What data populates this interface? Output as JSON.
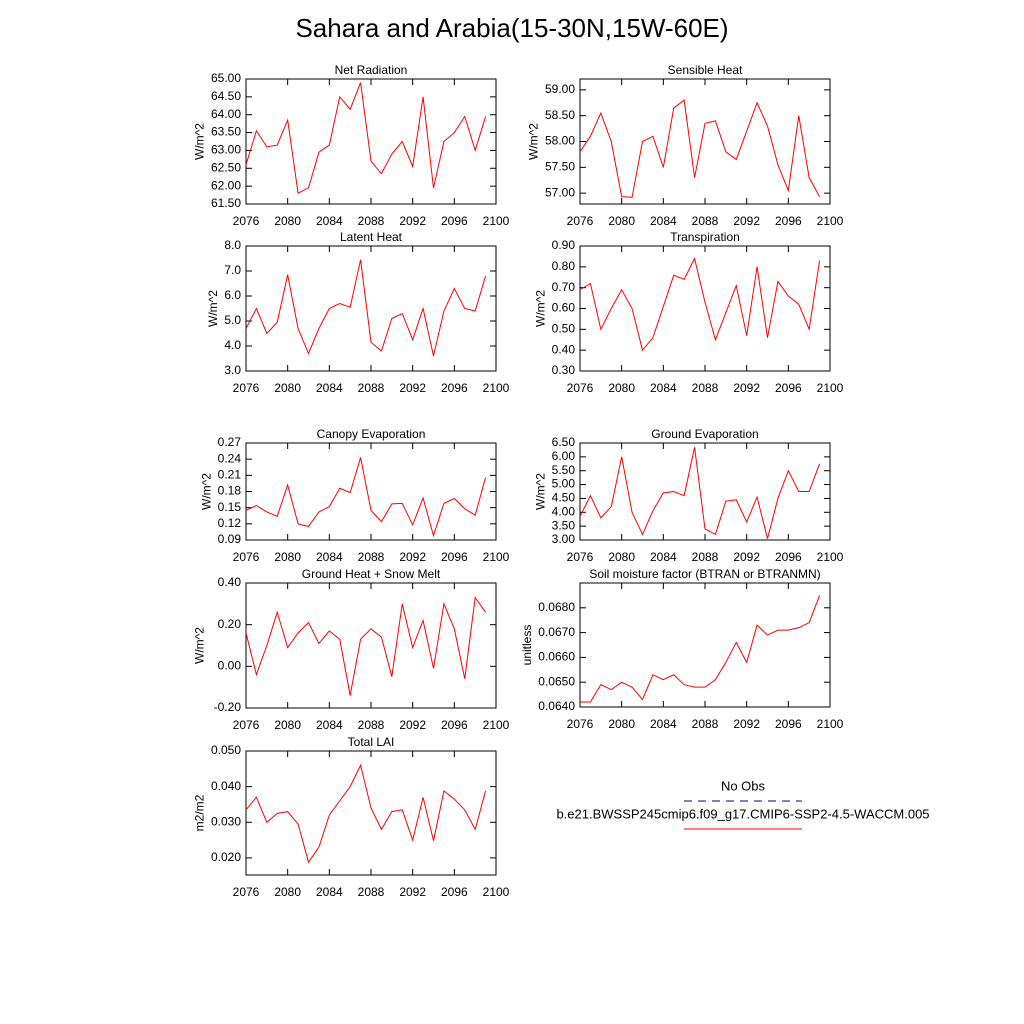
{
  "title": "Sahara and Arabia(15-30N,15W-60E)",
  "legend": [
    {
      "name": "No Obs",
      "color": "#000080",
      "dashed": true
    },
    {
      "name": "b.e21.BWSSP245cmip6.f09_g17.CMIP6-SSP2-4.5-WACCM.005",
      "color": "#ff0000",
      "dashed": false
    }
  ],
  "chart_data": [
    {
      "type": "line",
      "title": "Net Radiation",
      "ylabel": "W/m^2",
      "color": "#ff0000",
      "x": [
        2076,
        2077,
        2078,
        2079,
        2080,
        2081,
        2082,
        2083,
        2084,
        2085,
        2086,
        2087,
        2088,
        2089,
        2090,
        2091,
        2092,
        2093,
        2094,
        2095,
        2096,
        2097,
        2098,
        2099
      ],
      "values": [
        62.6,
        63.55,
        63.1,
        63.15,
        63.85,
        61.8,
        61.95,
        62.95,
        63.15,
        64.5,
        64.15,
        64.9,
        62.7,
        62.35,
        62.9,
        63.25,
        62.55,
        64.5,
        61.95,
        63.25,
        63.5,
        63.95,
        63.0,
        63.95
      ],
      "xlim": [
        2076,
        2100
      ],
      "xticks": [
        2076,
        2080,
        2084,
        2088,
        2092,
        2096,
        2100
      ],
      "ylim": [
        61.5,
        65.0
      ],
      "yticks": [
        {
          "value": 61.5,
          "label": "61.50"
        },
        {
          "value": 62,
          "label": "62.00"
        },
        {
          "value": 62.5,
          "label": "62.50"
        },
        {
          "value": 63,
          "label": "63.00"
        },
        {
          "value": 63.5,
          "label": "63.50"
        },
        {
          "value": 64,
          "label": "64.00"
        },
        {
          "value": 64.5,
          "label": "64.50"
        },
        {
          "value": 65,
          "label": "65.00"
        }
      ]
    },
    {
      "type": "line",
      "title": "Sensible Heat",
      "ylabel": "W/m^2",
      "color": "#ff0000",
      "x": [
        2076,
        2077,
        2078,
        2079,
        2080,
        2081,
        2082,
        2083,
        2084,
        2085,
        2086,
        2087,
        2088,
        2089,
        2090,
        2091,
        2092,
        2093,
        2094,
        2095,
        2096,
        2097,
        2098,
        2099
      ],
      "values": [
        57.8,
        58.1,
        58.55,
        58.0,
        56.93,
        56.92,
        58.0,
        58.1,
        57.5,
        58.65,
        58.8,
        57.3,
        58.35,
        58.4,
        57.8,
        57.65,
        58.2,
        58.75,
        58.3,
        57.55,
        57.05,
        58.5,
        57.3,
        56.93
      ],
      "xlim": [
        2076,
        2100
      ],
      "xticks": [
        2076,
        2080,
        2084,
        2088,
        2092,
        2096,
        2100
      ],
      "ylim": [
        56.79,
        59.21
      ],
      "yticks": [
        {
          "value": 57,
          "label": "57.00"
        },
        {
          "value": 57.5,
          "label": "57.50"
        },
        {
          "value": 58,
          "label": "58.00"
        },
        {
          "value": 58.5,
          "label": "58.50"
        },
        {
          "value": 59,
          "label": "59.00"
        }
      ]
    },
    {
      "type": "line",
      "title": "Latent Heat",
      "ylabel": "W/m^2",
      "color": "#ff0000",
      "x": [
        2076,
        2077,
        2078,
        2079,
        2080,
        2081,
        2082,
        2083,
        2084,
        2085,
        2086,
        2087,
        2088,
        2089,
        2090,
        2091,
        2092,
        2093,
        2094,
        2095,
        2096,
        2097,
        2098,
        2099
      ],
      "values": [
        4.7,
        5.5,
        4.5,
        4.95,
        6.85,
        4.7,
        3.7,
        4.7,
        5.5,
        5.7,
        5.55,
        7.45,
        4.15,
        3.8,
        5.1,
        5.3,
        4.25,
        5.5,
        3.6,
        5.4,
        6.3,
        5.5,
        5.4,
        6.8
      ],
      "xlim": [
        2076,
        2100
      ],
      "xticks": [
        2076,
        2080,
        2084,
        2088,
        2092,
        2096,
        2100
      ],
      "ylim": [
        3,
        8
      ],
      "yticks": [
        {
          "value": 3,
          "label": "3.0"
        },
        {
          "value": 4,
          "label": "4.0"
        },
        {
          "value": 5,
          "label": "5.0"
        },
        {
          "value": 6,
          "label": "6.0"
        },
        {
          "value": 7,
          "label": "7.0"
        },
        {
          "value": 8,
          "label": "8.0"
        }
      ]
    },
    {
      "type": "line",
      "title": "Transpiration",
      "ylabel": "W/m^2",
      "color": "#ff0000",
      "x": [
        2076,
        2077,
        2078,
        2079,
        2080,
        2081,
        2082,
        2083,
        2084,
        2085,
        2086,
        2087,
        2088,
        2089,
        2090,
        2091,
        2092,
        2093,
        2094,
        2095,
        2096,
        2097,
        2098,
        2099
      ],
      "values": [
        0.69,
        0.72,
        0.5,
        0.6,
        0.69,
        0.6,
        0.4,
        0.46,
        0.61,
        0.76,
        0.74,
        0.84,
        0.63,
        0.45,
        0.58,
        0.71,
        0.47,
        0.8,
        0.46,
        0.73,
        0.66,
        0.62,
        0.5,
        0.83
      ],
      "xlim": [
        2076,
        2100
      ],
      "xticks": [
        2076,
        2080,
        2084,
        2088,
        2092,
        2096,
        2100
      ],
      "ylim": [
        0.3,
        0.9
      ],
      "yticks": [
        {
          "value": 0.3,
          "label": "0.30"
        },
        {
          "value": 0.4,
          "label": "0.40"
        },
        {
          "value": 0.5,
          "label": "0.50"
        },
        {
          "value": 0.6,
          "label": "0.60"
        },
        {
          "value": 0.7,
          "label": "0.70"
        },
        {
          "value": 0.8,
          "label": "0.80"
        },
        {
          "value": 0.9,
          "label": "0.90"
        }
      ]
    },
    {
      "type": "line",
      "title": "Canopy Evaporation",
      "ylabel": "W/m^2",
      "color": "#ff0000",
      "x": [
        2076,
        2077,
        2078,
        2079,
        2080,
        2081,
        2082,
        2083,
        2084,
        2085,
        2086,
        2087,
        2088,
        2089,
        2090,
        2091,
        2092,
        2093,
        2094,
        2095,
        2096,
        2097,
        2098,
        2099
      ],
      "values": [
        0.145,
        0.154,
        0.142,
        0.134,
        0.192,
        0.12,
        0.115,
        0.142,
        0.152,
        0.186,
        0.178,
        0.243,
        0.145,
        0.124,
        0.157,
        0.158,
        0.118,
        0.168,
        0.098,
        0.158,
        0.167,
        0.148,
        0.136,
        0.206
      ],
      "xlim": [
        2076,
        2100
      ],
      "xticks": [
        2076,
        2080,
        2084,
        2088,
        2092,
        2096,
        2100
      ],
      "ylim": [
        0.09,
        0.27
      ],
      "yticks": [
        0.09,
        0.12,
        0.15,
        0.18,
        0.21,
        0.24,
        0.27
      ]
    },
    {
      "type": "line",
      "title": "Ground Evaporation",
      "ylabel": "W/m^2",
      "color": "#ff0000",
      "x": [
        2076,
        2077,
        2078,
        2079,
        2080,
        2081,
        2082,
        2083,
        2084,
        2085,
        2086,
        2087,
        2088,
        2089,
        2090,
        2091,
        2092,
        2093,
        2094,
        2095,
        2096,
        2097,
        2098,
        2099
      ],
      "values": [
        3.85,
        4.6,
        3.8,
        4.2,
        6.0,
        4.0,
        3.2,
        4.05,
        4.7,
        4.75,
        4.6,
        6.35,
        3.4,
        3.2,
        4.4,
        4.45,
        3.65,
        4.55,
        3.05,
        4.5,
        5.5,
        4.75,
        4.75,
        5.75
      ],
      "xlim": [
        2076,
        2100
      ],
      "xticks": [
        2076,
        2080,
        2084,
        2088,
        2092,
        2096,
        2100
      ],
      "ylim": [
        3.0,
        6.5
      ],
      "yticks": [
        {
          "value": 3,
          "label": "3.00"
        },
        {
          "value": 3.5,
          "label": "3.50"
        },
        {
          "value": 4,
          "label": "4.00"
        },
        {
          "value": 4.5,
          "label": "4.50"
        },
        {
          "value": 5,
          "label": "5.00"
        },
        {
          "value": 5.5,
          "label": "5.50"
        },
        {
          "value": 6,
          "label": "6.00"
        },
        {
          "value": 6.5,
          "label": "6.50"
        }
      ]
    },
    {
      "type": "line",
      "title": "Ground Heat + Snow Melt",
      "ylabel": "W/m^2",
      "color": "#ff0000",
      "x": [
        2076,
        2077,
        2078,
        2079,
        2080,
        2081,
        2082,
        2083,
        2084,
        2085,
        2086,
        2087,
        2088,
        2089,
        2090,
        2091,
        2092,
        2093,
        2094,
        2095,
        2096,
        2097,
        2098,
        2099
      ],
      "values": [
        0.16,
        -0.04,
        0.1,
        0.26,
        0.09,
        0.16,
        0.21,
        0.11,
        0.17,
        0.13,
        -0.14,
        0.13,
        0.18,
        0.14,
        -0.05,
        0.3,
        0.09,
        0.22,
        -0.01,
        0.3,
        0.18,
        -0.06,
        0.33,
        0.26
      ],
      "xlim": [
        2076,
        2100
      ],
      "xticks": [
        2076,
        2080,
        2084,
        2088,
        2092,
        2096,
        2100
      ],
      "ylim": [
        -0.2,
        0.4
      ],
      "yticks": [
        {
          "value": -0.2,
          "label": "-0.20"
        },
        {
          "value": 0,
          "label": "0.00"
        },
        {
          "value": 0.2,
          "label": "0.20"
        },
        {
          "value": 0.4,
          "label": "0.40"
        }
      ]
    },
    {
      "type": "line",
      "title": "Soil moisture factor (BTRAN or BTRANMN)",
      "ylabel": "unitless",
      "color": "#ff0000",
      "x": [
        2076,
        2077,
        2078,
        2079,
        2080,
        2081,
        2082,
        2083,
        2084,
        2085,
        2086,
        2087,
        2088,
        2089,
        2090,
        2091,
        2092,
        2093,
        2094,
        2095,
        2096,
        2097,
        2098,
        2099
      ],
      "values": [
        0.0642,
        0.0642,
        0.0649,
        0.0647,
        0.065,
        0.0648,
        0.0643,
        0.0653,
        0.0651,
        0.0653,
        0.0649,
        0.0648,
        0.0648,
        0.0651,
        0.0658,
        0.0666,
        0.0658,
        0.0673,
        0.0669,
        0.0671,
        0.0671,
        0.0672,
        0.0674,
        0.0685
      ],
      "xlim": [
        2076,
        2100
      ],
      "xticks": [
        2076,
        2080,
        2084,
        2088,
        2092,
        2096,
        2100
      ],
      "ylim": [
        0.064,
        0.069
      ],
      "yticks": [
        {
          "value": 0.064,
          "label": "0.0640"
        },
        {
          "value": 0.065,
          "label": "0.0650"
        },
        {
          "value": 0.066,
          "label": "0.0660"
        },
        {
          "value": 0.067,
          "label": "0.0670"
        },
        {
          "value": 0.068,
          "label": "0.0680"
        }
      ]
    },
    {
      "type": "line",
      "title": "Total LAI",
      "ylabel": "m2/m2",
      "color": "#ff0000",
      "x": [
        2076,
        2077,
        2078,
        2079,
        2080,
        2081,
        2082,
        2083,
        2084,
        2085,
        2086,
        2087,
        2088,
        2089,
        2090,
        2091,
        2092,
        2093,
        2094,
        2095,
        2096,
        2097,
        2098,
        2099
      ],
      "values": [
        0.0335,
        0.037,
        0.03,
        0.0325,
        0.033,
        0.0295,
        0.0188,
        0.023,
        0.032,
        0.036,
        0.04,
        0.046,
        0.034,
        0.028,
        0.033,
        0.0335,
        0.025,
        0.037,
        0.0248,
        0.0388,
        0.0365,
        0.0335,
        0.028,
        0.0388
      ],
      "xlim": [
        2076,
        2100
      ],
      "xticks": [
        2076,
        2080,
        2084,
        2088,
        2092,
        2096,
        2100
      ],
      "ylim": [
        0.0152,
        0.05
      ],
      "yticks": [
        {
          "value": 0.02,
          "label": "0.020"
        },
        {
          "value": 0.03,
          "label": "0.030"
        },
        {
          "value": 0.04,
          "label": "0.040"
        },
        {
          "value": 0.05,
          "label": "0.050"
        }
      ]
    }
  ]
}
